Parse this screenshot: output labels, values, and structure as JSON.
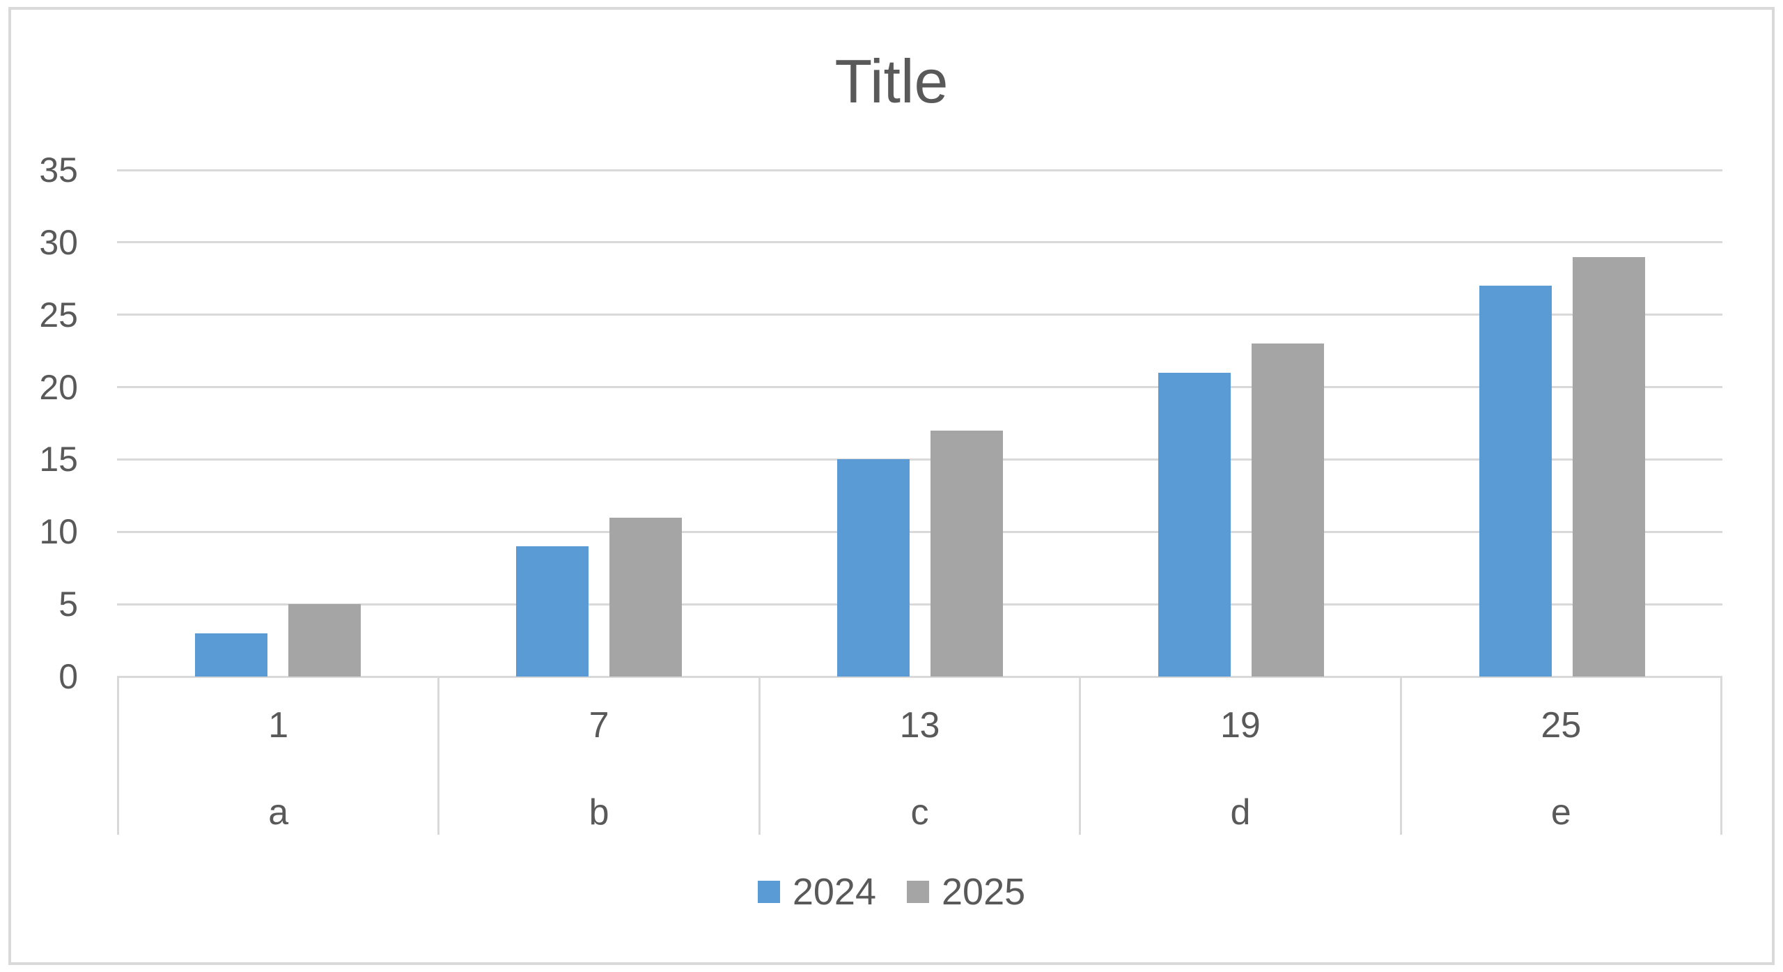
{
  "figure": {
    "background": "#FFFFFF",
    "border_color": "#D9D9D9"
  },
  "chart_data": {
    "type": "bar",
    "title": "Title",
    "categories": [
      {
        "number": "1",
        "letter": "a"
      },
      {
        "number": "7",
        "letter": "b"
      },
      {
        "number": "13",
        "letter": "c"
      },
      {
        "number": "19",
        "letter": "d"
      },
      {
        "number": "25",
        "letter": "e"
      }
    ],
    "series": [
      {
        "name": "2024",
        "color": "#5B9BD5",
        "values": [
          3,
          9,
          15,
          21,
          27
        ]
      },
      {
        "name": "2025",
        "color": "#A5A5A5",
        "values": [
          5,
          11,
          17,
          23,
          29
        ]
      }
    ],
    "ylim": [
      0,
      35
    ],
    "yticks": [
      0,
      5,
      10,
      15,
      20,
      25,
      30,
      35
    ],
    "grid": true,
    "gridline_color": "#D9D9D9",
    "text_color": "#595959",
    "legend_position": "bottom"
  }
}
